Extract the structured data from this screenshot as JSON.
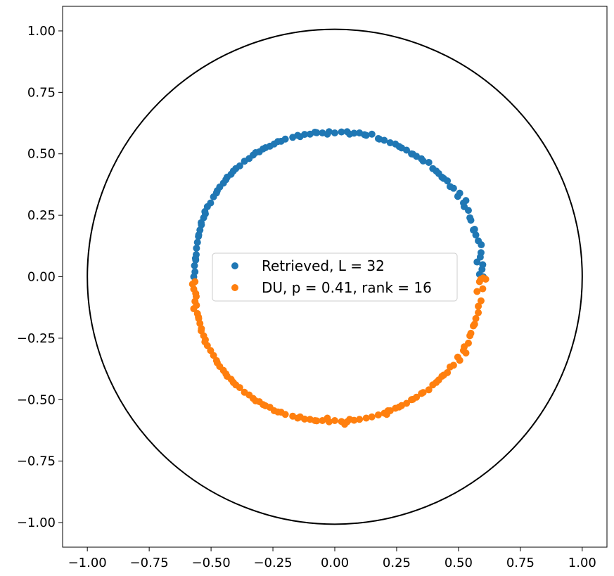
{
  "chart_data": {
    "type": "scatter",
    "title": "",
    "xlabel": "",
    "ylabel": "",
    "xlim": [
      -1.1,
      1.1
    ],
    "ylim": [
      -1.1,
      1.1
    ],
    "xticks": [
      "−1.00",
      "−0.75",
      "−0.50",
      "−0.25",
      "0.00",
      "0.25",
      "0.50",
      "0.75",
      "1.00"
    ],
    "yticks": [
      "1.00",
      "0.75",
      "0.50",
      "0.25",
      "0.00",
      "−0.25",
      "−0.50",
      "−0.75",
      "−1.00"
    ],
    "grid": false,
    "legend_position": "center",
    "unit_circle": {
      "radius": 1.0,
      "color": "#000000"
    },
    "series": [
      {
        "name": "Retrieved, L = 32",
        "color": "#1f77b4",
        "points": [
          [
            0.6,
            0.0
          ],
          [
            0.598,
            0.049
          ],
          [
            0.591,
            0.098
          ],
          [
            0.58,
            0.146
          ],
          [
            0.565,
            0.193
          ],
          [
            0.546,
            0.24
          ],
          [
            0.523,
            0.285
          ],
          [
            0.497,
            0.327
          ],
          [
            0.466,
            0.367
          ],
          [
            0.433,
            0.405
          ],
          [
            0.396,
            0.44
          ],
          [
            0.357,
            0.471
          ],
          [
            0.315,
            0.499
          ],
          [
            0.27,
            0.524
          ],
          [
            0.224,
            0.545
          ],
          [
            0.176,
            0.562
          ],
          [
            0.127,
            0.575
          ],
          [
            0.078,
            0.584
          ],
          [
            0.027,
            0.589
          ],
          [
            -0.023,
            0.59
          ],
          [
            -0.073,
            0.586
          ],
          [
            -0.122,
            0.579
          ],
          [
            -0.17,
            0.567
          ],
          [
            -0.217,
            0.551
          ],
          [
            -0.262,
            0.531
          ],
          [
            -0.305,
            0.508
          ],
          [
            -0.346,
            0.481
          ],
          [
            -0.384,
            0.451
          ],
          [
            -0.419,
            0.417
          ],
          [
            -0.45,
            0.381
          ],
          [
            -0.478,
            0.341
          ],
          [
            -0.502,
            0.3
          ],
          [
            -0.523,
            0.256
          ],
          [
            -0.539,
            0.211
          ],
          [
            -0.551,
            0.164
          ],
          [
            -0.559,
            0.116
          ],
          [
            -0.562,
            0.068
          ],
          [
            -0.565,
            0.02
          ],
          [
            0.585,
            0.01
          ],
          [
            0.575,
            0.06
          ],
          [
            0.56,
            0.19
          ],
          [
            0.55,
            0.23
          ],
          [
            0.53,
            0.31
          ],
          [
            0.505,
            0.34
          ],
          [
            0.455,
            0.39
          ],
          [
            0.42,
            0.42
          ],
          [
            0.38,
            0.465
          ],
          [
            0.33,
            0.49
          ],
          [
            0.29,
            0.515
          ],
          [
            0.245,
            0.54
          ],
          [
            0.2,
            0.555
          ],
          [
            0.15,
            0.58
          ],
          [
            0.1,
            0.585
          ],
          [
            0.05,
            0.59
          ],
          [
            0.0,
            0.585
          ],
          [
            -0.05,
            0.585
          ],
          [
            -0.1,
            0.58
          ],
          [
            -0.15,
            0.575
          ],
          [
            -0.2,
            0.56
          ],
          [
            -0.245,
            0.54
          ],
          [
            -0.29,
            0.52
          ],
          [
            -0.33,
            0.495
          ],
          [
            -0.365,
            0.47
          ],
          [
            -0.4,
            0.44
          ],
          [
            -0.435,
            0.405
          ],
          [
            -0.465,
            0.365
          ],
          [
            -0.49,
            0.325
          ],
          [
            -0.515,
            0.285
          ],
          [
            -0.53,
            0.24
          ],
          [
            -0.545,
            0.19
          ],
          [
            -0.555,
            0.14
          ],
          [
            -0.56,
            0.09
          ],
          [
            -0.567,
            0.045
          ],
          [
            -0.57,
            0.0
          ],
          [
            0.592,
            0.13
          ],
          [
            0.57,
            0.17
          ],
          [
            0.54,
            0.27
          ],
          [
            0.48,
            0.36
          ],
          [
            0.41,
            0.43
          ],
          [
            0.35,
            0.48
          ],
          [
            0.26,
            0.53
          ],
          [
            0.18,
            0.56
          ],
          [
            0.06,
            0.58
          ],
          [
            -0.03,
            0.58
          ],
          [
            -0.14,
            0.57
          ],
          [
            -0.23,
            0.55
          ],
          [
            -0.32,
            0.505
          ],
          [
            -0.41,
            0.43
          ],
          [
            -0.475,
            0.35
          ],
          [
            -0.525,
            0.265
          ],
          [
            -0.55,
            0.17
          ],
          [
            -0.563,
            0.075
          ],
          [
            0.595,
            0.03
          ],
          [
            0.588,
            0.08
          ],
          [
            0.52,
            0.3
          ],
          [
            0.44,
            0.4
          ],
          [
            0.31,
            0.5
          ],
          [
            0.12,
            0.578
          ],
          [
            -0.08,
            0.588
          ],
          [
            -0.28,
            0.525
          ],
          [
            -0.44,
            0.395
          ],
          [
            -0.54,
            0.22
          ]
        ]
      },
      {
        "name": "DU, p = 0.41, rank = 16",
        "color": "#ff7f0e",
        "points": [
          [
            0.61,
            -0.01
          ],
          [
            0.598,
            -0.049
          ],
          [
            0.591,
            -0.098
          ],
          [
            0.58,
            -0.146
          ],
          [
            0.565,
            -0.193
          ],
          [
            0.546,
            -0.24
          ],
          [
            0.523,
            -0.285
          ],
          [
            0.497,
            -0.327
          ],
          [
            0.466,
            -0.367
          ],
          [
            0.433,
            -0.405
          ],
          [
            0.396,
            -0.44
          ],
          [
            0.357,
            -0.471
          ],
          [
            0.315,
            -0.499
          ],
          [
            0.27,
            -0.524
          ],
          [
            0.224,
            -0.545
          ],
          [
            0.176,
            -0.562
          ],
          [
            0.127,
            -0.575
          ],
          [
            0.078,
            -0.584
          ],
          [
            0.027,
            -0.589
          ],
          [
            -0.023,
            -0.59
          ],
          [
            -0.073,
            -0.586
          ],
          [
            -0.122,
            -0.579
          ],
          [
            -0.17,
            -0.567
          ],
          [
            -0.217,
            -0.551
          ],
          [
            -0.262,
            -0.531
          ],
          [
            -0.305,
            -0.508
          ],
          [
            -0.346,
            -0.481
          ],
          [
            -0.384,
            -0.451
          ],
          [
            -0.419,
            -0.417
          ],
          [
            -0.45,
            -0.381
          ],
          [
            -0.478,
            -0.341
          ],
          [
            -0.502,
            -0.3
          ],
          [
            -0.523,
            -0.256
          ],
          [
            -0.539,
            -0.211
          ],
          [
            -0.551,
            -0.164
          ],
          [
            -0.559,
            -0.116
          ],
          [
            -0.562,
            -0.068
          ],
          [
            -0.565,
            -0.02
          ],
          [
            0.585,
            -0.02
          ],
          [
            0.575,
            -0.06
          ],
          [
            0.56,
            -0.2
          ],
          [
            0.55,
            -0.23
          ],
          [
            0.53,
            -0.31
          ],
          [
            0.505,
            -0.34
          ],
          [
            0.455,
            -0.39
          ],
          [
            0.42,
            -0.42
          ],
          [
            0.38,
            -0.46
          ],
          [
            0.33,
            -0.49
          ],
          [
            0.29,
            -0.515
          ],
          [
            0.245,
            -0.535
          ],
          [
            0.2,
            -0.555
          ],
          [
            0.15,
            -0.57
          ],
          [
            0.1,
            -0.58
          ],
          [
            0.05,
            -0.59
          ],
          [
            0.0,
            -0.585
          ],
          [
            -0.05,
            -0.585
          ],
          [
            -0.1,
            -0.58
          ],
          [
            -0.15,
            -0.575
          ],
          [
            -0.2,
            -0.56
          ],
          [
            -0.245,
            -0.545
          ],
          [
            -0.29,
            -0.52
          ],
          [
            -0.33,
            -0.495
          ],
          [
            -0.365,
            -0.47
          ],
          [
            -0.4,
            -0.44
          ],
          [
            -0.435,
            -0.405
          ],
          [
            -0.465,
            -0.365
          ],
          [
            -0.49,
            -0.32
          ],
          [
            -0.515,
            -0.28
          ],
          [
            -0.53,
            -0.24
          ],
          [
            -0.545,
            -0.19
          ],
          [
            -0.555,
            -0.15
          ],
          [
            -0.565,
            -0.1
          ],
          [
            -0.57,
            -0.05
          ],
          [
            -0.575,
            -0.03
          ],
          [
            0.58,
            -0.12
          ],
          [
            0.57,
            -0.17
          ],
          [
            0.54,
            -0.27
          ],
          [
            0.48,
            -0.36
          ],
          [
            0.41,
            -0.43
          ],
          [
            0.35,
            -0.475
          ],
          [
            0.26,
            -0.53
          ],
          [
            0.21,
            -0.56
          ],
          [
            0.06,
            -0.58
          ],
          [
            -0.03,
            -0.575
          ],
          [
            -0.14,
            -0.57
          ],
          [
            -0.23,
            -0.55
          ],
          [
            -0.32,
            -0.505
          ],
          [
            -0.41,
            -0.43
          ],
          [
            -0.475,
            -0.35
          ],
          [
            -0.525,
            -0.265
          ],
          [
            -0.55,
            -0.17
          ],
          [
            -0.56,
            -0.08
          ],
          [
            0.6,
            -0.005
          ],
          [
            0.59,
            -0.01
          ],
          [
            0.52,
            -0.3
          ],
          [
            0.44,
            -0.4
          ],
          [
            0.31,
            -0.5
          ],
          [
            0.215,
            -0.545
          ],
          [
            0.04,
            -0.6
          ],
          [
            -0.08,
            -0.585
          ],
          [
            -0.28,
            -0.525
          ],
          [
            -0.44,
            -0.395
          ],
          [
            -0.54,
            -0.22
          ],
          [
            -0.57,
            -0.13
          ]
        ]
      }
    ]
  }
}
